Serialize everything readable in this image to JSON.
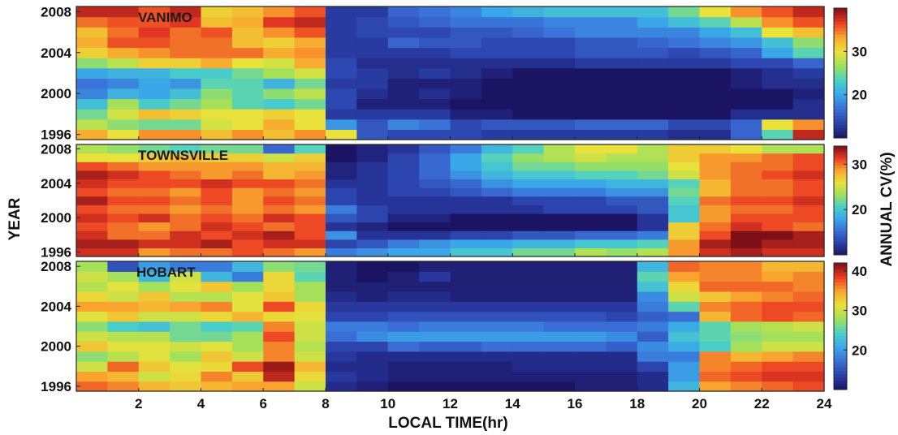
{
  "chart_data": {
    "type": "heatmap",
    "xlabel": "LOCAL TIME(hr)",
    "ylabel": "YEAR",
    "colorbar_label": "ANNUAL CV(%)",
    "x_ticks": [
      2,
      4,
      6,
      8,
      10,
      12,
      14,
      16,
      18,
      20,
      22,
      24
    ],
    "xlim": [
      0,
      24
    ],
    "y_ticks": [
      1996,
      2000,
      2004,
      2008
    ],
    "ylim": [
      1996,
      2008
    ],
    "colormap": [
      "#1a1463",
      "#2a3fa8",
      "#3a6ed6",
      "#3aa7e8",
      "#49d0c8",
      "#9fe05c",
      "#e8e23a",
      "#f9a72e",
      "#ea3b22",
      "#7e0f16"
    ],
    "panels": [
      {
        "title": "VANIMO",
        "colorbar_ticks": [
          20,
          30
        ],
        "clim": [
          10,
          40
        ],
        "note": "approximate annual CV (%) per year (rows 1996-2008) and local hour (cols 0-23)",
        "rows": [
          [
            33,
            30,
            34,
            34,
            32,
            34,
            32,
            34,
            30,
            15,
            14,
            14,
            14,
            13,
            13,
            13,
            13,
            13,
            13,
            12,
            12,
            16,
            24,
            38
          ],
          [
            28,
            26,
            25,
            25,
            29,
            30,
            33,
            30,
            19,
            15,
            18,
            17,
            14,
            15,
            15,
            15,
            16,
            16,
            16,
            14,
            14,
            16,
            30,
            34
          ],
          [
            25,
            29,
            32,
            31,
            30,
            30,
            31,
            30,
            13,
            13,
            13,
            13,
            11,
            11,
            10,
            10,
            10,
            10,
            10,
            10,
            10,
            12,
            12,
            12
          ],
          [
            22,
            27,
            23,
            25,
            27,
            24,
            23,
            25,
            14,
            11,
            11,
            11,
            10,
            9,
            9,
            9,
            9,
            9,
            9,
            9,
            9,
            10,
            10,
            12
          ],
          [
            18,
            21,
            20,
            22,
            26,
            24,
            26,
            28,
            14,
            12,
            11,
            12,
            11,
            10,
            9,
            9,
            9,
            9,
            9,
            9,
            9,
            10,
            10,
            11
          ],
          [
            17,
            18,
            20,
            19,
            24,
            24,
            21,
            25,
            13,
            13,
            11,
            11,
            11,
            10,
            10,
            10,
            10,
            10,
            10,
            9,
            10,
            11,
            12,
            12
          ],
          [
            20,
            21,
            21,
            23,
            23,
            25,
            27,
            29,
            14,
            13,
            12,
            13,
            12,
            11,
            10,
            10,
            10,
            10,
            10,
            10,
            10,
            11,
            12,
            13
          ],
          [
            26,
            28,
            31,
            31,
            33,
            30,
            29,
            33,
            14,
            12,
            12,
            12,
            12,
            12,
            12,
            12,
            13,
            13,
            13,
            13,
            13,
            14,
            14,
            16
          ],
          [
            31,
            33,
            34,
            35,
            35,
            35,
            33,
            34,
            13,
            13,
            13,
            13,
            14,
            14,
            14,
            14,
            15,
            15,
            15,
            14,
            15,
            16,
            20,
            24
          ],
          [
            33,
            36,
            36,
            35,
            35,
            32,
            31,
            33,
            13,
            13,
            16,
            15,
            15,
            14,
            14,
            14,
            15,
            15,
            16,
            17,
            18,
            19,
            22,
            26
          ],
          [
            32,
            35,
            37,
            35,
            36,
            32,
            34,
            36,
            13,
            14,
            14,
            14,
            15,
            15,
            16,
            17,
            18,
            18,
            18,
            18,
            20,
            22,
            30,
            32
          ],
          [
            35,
            36,
            36,
            37,
            32,
            33,
            37,
            38,
            13,
            14,
            15,
            16,
            17,
            17,
            17,
            18,
            18,
            18,
            20,
            22,
            24,
            28,
            34,
            36
          ],
          [
            38,
            38,
            36,
            38,
            31,
            32,
            34,
            36,
            13,
            13,
            16,
            17,
            18,
            20,
            21,
            22,
            22,
            22,
            22,
            25,
            30,
            34,
            36,
            38
          ]
        ]
      },
      {
        "title": "TOWNSVILLE",
        "colorbar_ticks": [
          20,
          30
        ],
        "clim": [
          10,
          34
        ],
        "note": "approximate annual CV (%) per year (rows 1996-2008) and local hour (cols 0-23)",
        "rows": [
          [
            32,
            32,
            29,
            30,
            30,
            31,
            30,
            29,
            16,
            17,
            18,
            18,
            20,
            20,
            22,
            22,
            24,
            23,
            24,
            29,
            32,
            33,
            32,
            32
          ],
          [
            33,
            33,
            32,
            32,
            33,
            31,
            32,
            32,
            13,
            14,
            16,
            17,
            18,
            18,
            19,
            19,
            20,
            20,
            21,
            29,
            33,
            34,
            33,
            33
          ],
          [
            32,
            30,
            30,
            32,
            31,
            32,
            33,
            31,
            17,
            12,
            12,
            12,
            13,
            13,
            14,
            14,
            15,
            15,
            16,
            27,
            31,
            34,
            34,
            33
          ],
          [
            31,
            30,
            29,
            30,
            32,
            31,
            30,
            31,
            12,
            11,
            10,
            10,
            10,
            10,
            10,
            10,
            10,
            10,
            12,
            27,
            30,
            32,
            31,
            30
          ],
          [
            32,
            31,
            32,
            30,
            31,
            30,
            32,
            31,
            14,
            13,
            11,
            11,
            10,
            10,
            10,
            10,
            10,
            10,
            12,
            20,
            29,
            31,
            31,
            31
          ],
          [
            31,
            30,
            30,
            29,
            30,
            29,
            30,
            29,
            16,
            13,
            12,
            12,
            12,
            12,
            12,
            13,
            13,
            13,
            14,
            20,
            29,
            30,
            30,
            31
          ],
          [
            33,
            31,
            31,
            30,
            31,
            29,
            31,
            30,
            13,
            12,
            12,
            12,
            12,
            12,
            13,
            13,
            13,
            14,
            14,
            21,
            30,
            31,
            31,
            32
          ],
          [
            31,
            30,
            30,
            29,
            31,
            29,
            30,
            29,
            13,
            12,
            13,
            13,
            14,
            15,
            16,
            16,
            16,
            17,
            17,
            22,
            28,
            30,
            30,
            31
          ],
          [
            32,
            31,
            31,
            31,
            32,
            31,
            31,
            30,
            12,
            12,
            13,
            14,
            15,
            17,
            18,
            18,
            18,
            19,
            19,
            21,
            28,
            30,
            30,
            31
          ],
          [
            33,
            32,
            31,
            30,
            29,
            30,
            28,
            29,
            11,
            12,
            13,
            15,
            17,
            19,
            20,
            20,
            21,
            21,
            22,
            25,
            29,
            30,
            31,
            32
          ],
          [
            31,
            30,
            29,
            29,
            29,
            29,
            28,
            28,
            11,
            12,
            13,
            15,
            18,
            20,
            22,
            22,
            23,
            23,
            23,
            26,
            29,
            30,
            30,
            31
          ],
          [
            26,
            26,
            27,
            28,
            27,
            27,
            25,
            27,
            10,
            11,
            13,
            15,
            18,
            21,
            23,
            24,
            25,
            24,
            24,
            27,
            29,
            29,
            30,
            31
          ],
          [
            24,
            23,
            22,
            21,
            22,
            22,
            15,
            21,
            10,
            11,
            12,
            14,
            16,
            19,
            21,
            24,
            26,
            26,
            24,
            27,
            27,
            26,
            24,
            24
          ]
        ]
      },
      {
        "title": "HOBART",
        "colorbar_ticks": [
          20,
          30,
          40
        ],
        "clim": [
          10,
          42
        ],
        "note": "approximate annual CV (%) per year (rows 1996-2008) and local hour (cols 0-23)",
        "rows": [
          [
            37,
            36,
            34,
            33,
            34,
            35,
            35,
            30,
            12,
            11,
            10,
            10,
            10,
            10,
            10,
            10,
            11,
            11,
            12,
            22,
            35,
            36,
            37,
            38
          ],
          [
            35,
            34,
            30,
            32,
            36,
            33,
            40,
            32,
            13,
            12,
            11,
            11,
            11,
            11,
            11,
            11,
            11,
            11,
            12,
            20,
            37,
            38,
            39,
            39
          ],
          [
            30,
            37,
            33,
            31,
            32,
            38,
            41,
            34,
            12,
            12,
            11,
            11,
            11,
            11,
            12,
            12,
            12,
            12,
            14,
            20,
            36,
            37,
            38,
            38
          ],
          [
            27,
            29,
            31,
            28,
            33,
            30,
            36,
            30,
            13,
            12,
            12,
            12,
            12,
            12,
            12,
            12,
            12,
            12,
            18,
            18,
            36,
            34,
            35,
            36
          ],
          [
            33,
            31,
            31,
            30,
            31,
            28,
            36,
            29,
            14,
            14,
            17,
            16,
            16,
            17,
            17,
            17,
            17,
            16,
            19,
            21,
            24,
            28,
            30,
            30
          ],
          [
            30,
            29,
            29,
            26,
            26,
            28,
            38,
            30,
            17,
            19,
            20,
            20,
            20,
            20,
            20,
            20,
            20,
            19,
            16,
            23,
            25,
            27,
            28,
            28
          ],
          [
            27,
            24,
            23,
            26,
            24,
            25,
            36,
            30,
            18,
            18,
            17,
            18,
            18,
            18,
            18,
            17,
            17,
            17,
            18,
            21,
            25,
            28,
            29,
            30
          ],
          [
            31,
            33,
            30,
            30,
            32,
            34,
            32,
            31,
            14,
            14,
            15,
            15,
            15,
            15,
            15,
            15,
            15,
            14,
            16,
            17,
            34,
            37,
            38,
            37
          ],
          [
            35,
            35,
            34,
            35,
            36,
            31,
            38,
            32,
            13,
            13,
            13,
            13,
            13,
            13,
            13,
            13,
            13,
            13,
            18,
            25,
            36,
            37,
            38,
            38
          ],
          [
            32,
            30,
            33,
            29,
            29,
            31,
            33,
            28,
            12,
            11,
            12,
            12,
            11,
            11,
            11,
            11,
            11,
            11,
            19,
            30,
            33,
            35,
            36,
            37
          ],
          [
            29,
            31,
            28,
            31,
            33,
            28,
            32,
            28,
            11,
            11,
            11,
            11,
            11,
            11,
            11,
            11,
            11,
            11,
            23,
            32,
            37,
            37,
            37,
            36
          ],
          [
            30,
            28,
            22,
            30,
            22,
            18,
            32,
            25,
            11,
            10,
            11,
            13,
            11,
            11,
            11,
            11,
            11,
            11,
            25,
            35,
            36,
            36,
            35,
            36
          ],
          [
            28,
            15,
            20,
            18,
            18,
            22,
            27,
            26,
            11,
            10,
            10,
            11,
            11,
            11,
            11,
            11,
            11,
            11,
            22,
            37,
            36,
            36,
            34,
            34
          ]
        ]
      }
    ]
  }
}
